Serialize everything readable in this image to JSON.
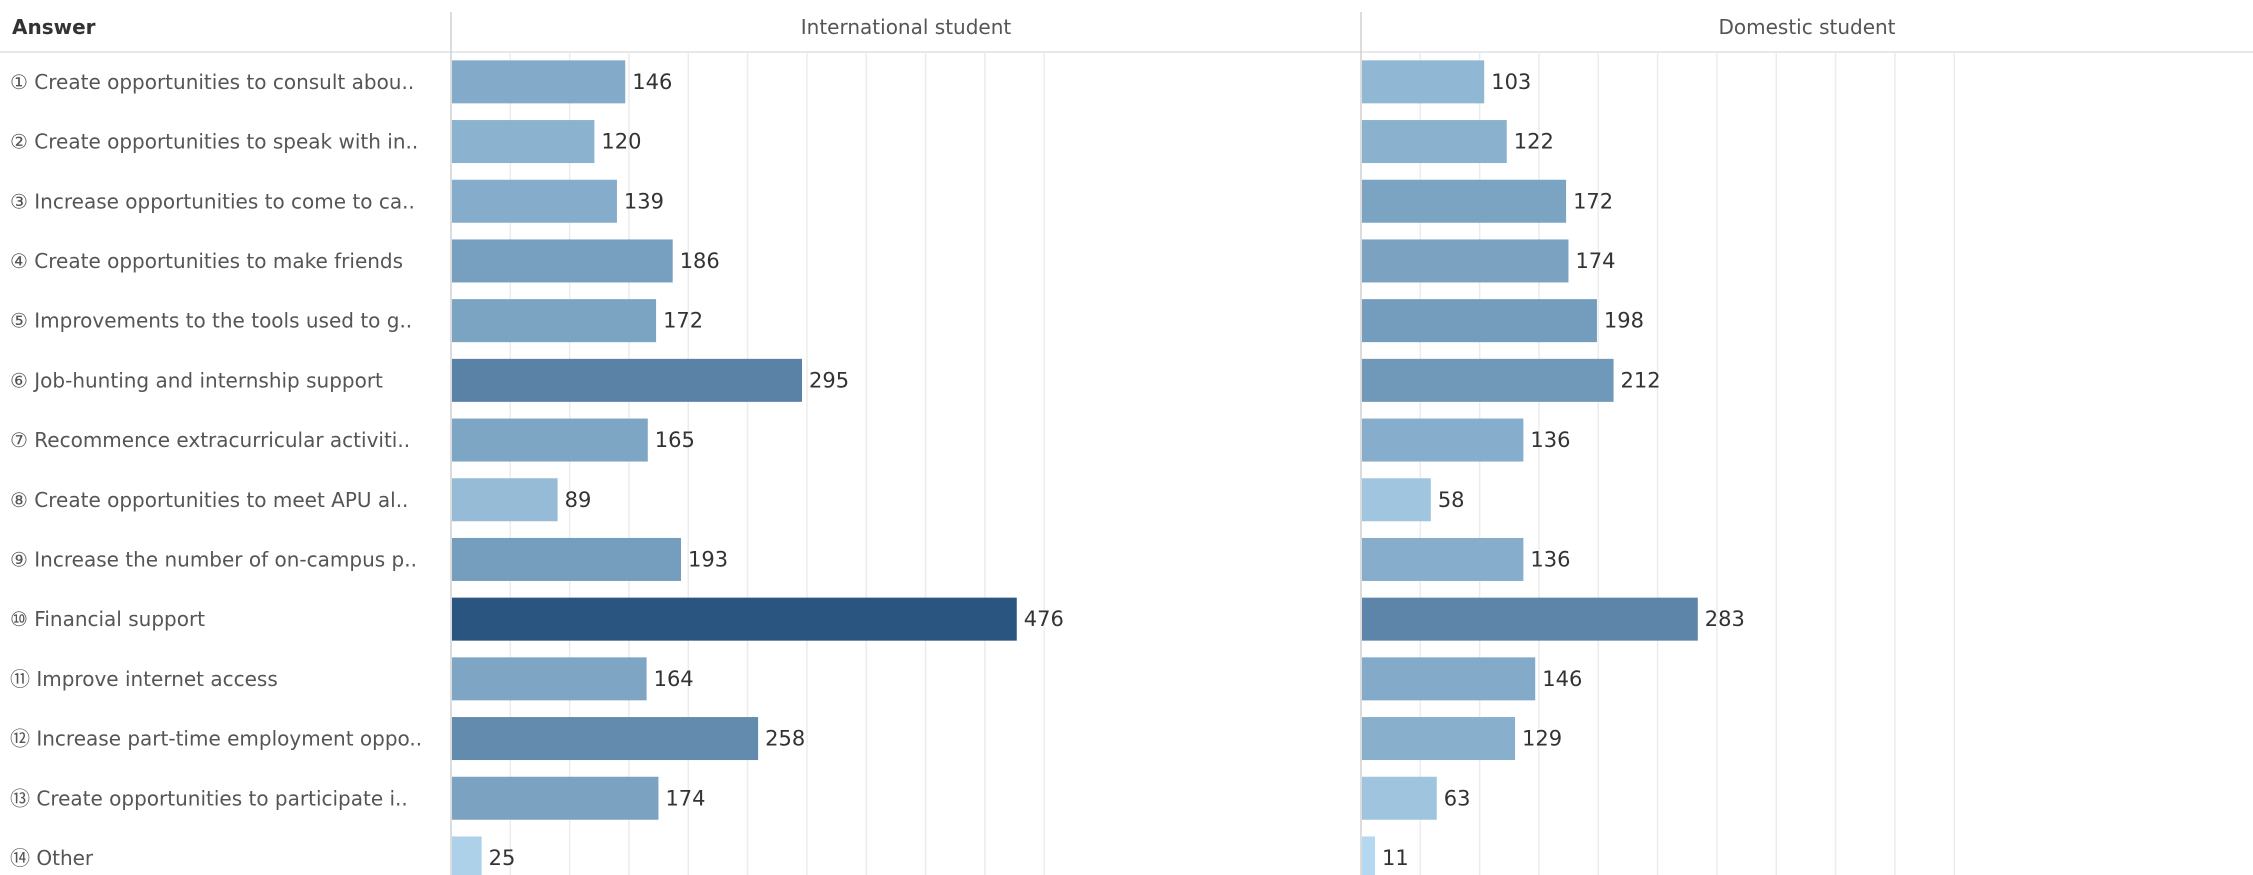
{
  "chart_data": {
    "type": "bar",
    "orientation": "horizontal",
    "row_header": "Answer",
    "categories": [
      "① Create opportunities to consult abou..",
      "② Create opportunities to speak with in..",
      "③ Increase opportunities to come to ca..",
      "④ Create opportunities to make friends",
      "⑤ Improvements to the tools used to g..",
      "⑥ Job-hunting and internship support",
      "⑦ Recommence extracurricular activiti..",
      "⑧ Create opportunities to meet APU al..",
      "⑨ Increase the number of on-campus p..",
      "⑩ Financial support",
      "⑪ Improve internet access",
      "⑫ Increase part-time employment oppo..",
      "⑬ Create opportunities to participate i..",
      "⑭ Other"
    ],
    "series": [
      {
        "name": "International student",
        "values": [
          146,
          120,
          139,
          186,
          172,
          295,
          165,
          89,
          193,
          476,
          164,
          258,
          174,
          25
        ]
      },
      {
        "name": "Domestic student",
        "values": [
          103,
          122,
          172,
          174,
          198,
          212,
          136,
          58,
          136,
          283,
          146,
          129,
          63,
          11
        ]
      }
    ],
    "xlim": [
      0,
      520
    ],
    "grid": true,
    "color_scale": [
      "#b3d8ef",
      "#2a5580"
    ]
  }
}
